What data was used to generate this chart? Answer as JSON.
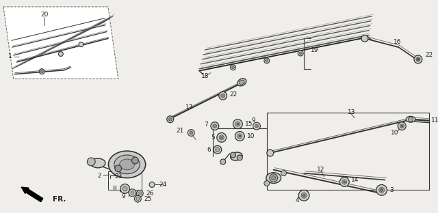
{
  "bg_color": "#f0eeeb",
  "line_color": "#1a1a1a",
  "fig_width": 6.4,
  "fig_height": 3.12,
  "dpi": 100
}
